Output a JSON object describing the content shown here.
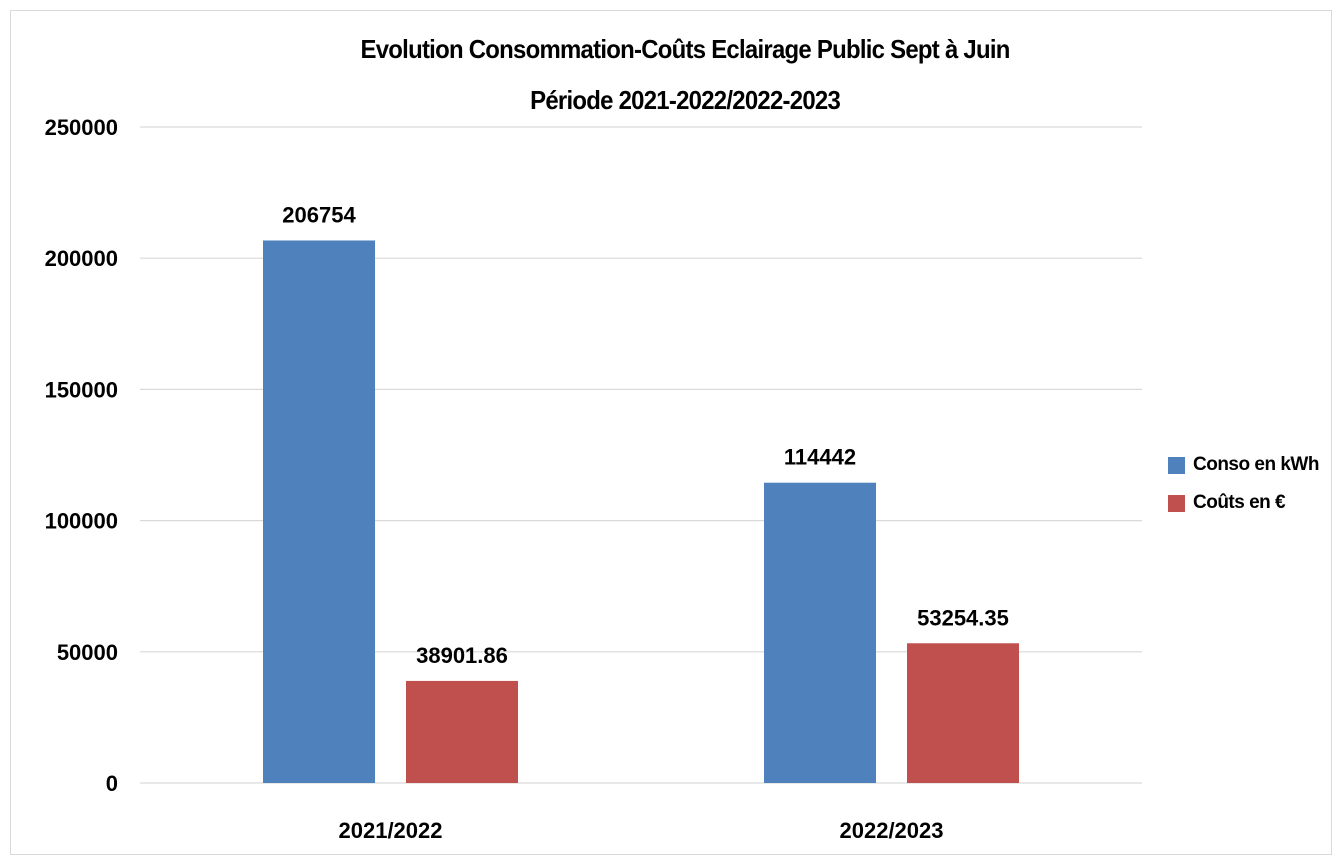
{
  "chart_data": {
    "type": "bar",
    "title": "Evolution Consommation-Coûts Eclairage Public Sept à Juin",
    "subtitle": "Période 2021-2022/2022-2023",
    "categories": [
      "2021/2022",
      "2022/2023"
    ],
    "series": [
      {
        "name": "Conso en kWh",
        "color": "#4f81bd",
        "values": [
          206754,
          114442
        ],
        "labels": [
          "206754",
          "114442"
        ]
      },
      {
        "name": "Coûts en €",
        "color": "#c0504d",
        "values": [
          38901.86,
          53254.35
        ],
        "labels": [
          "38901.86",
          "53254.35"
        ]
      }
    ],
    "ylim": [
      0,
      250000
    ],
    "yticks": [
      0,
      50000,
      100000,
      150000,
      200000,
      250000
    ],
    "grid": true,
    "legend_position": "right"
  }
}
